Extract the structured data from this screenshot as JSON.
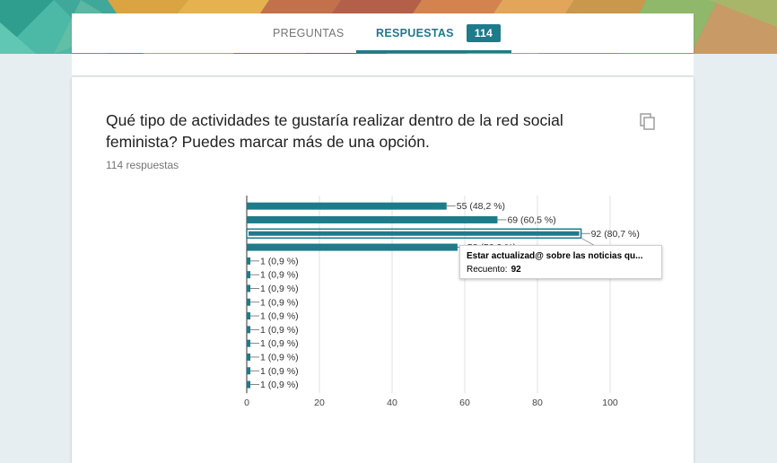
{
  "tabs": {
    "preguntas": "PREGUNTAS",
    "respuestas": "RESPUESTAS",
    "respuestas_count": "114"
  },
  "question": {
    "title": "Qué tipo de actividades te gustaría realizar dentro de la red social feminista? Puedes marcar más de una opción.",
    "responses": "114 respuestas"
  },
  "icons": {
    "copy": "copy-icon"
  },
  "colors": {
    "accent": "#1e7b8a",
    "bar": "#1e7b8a"
  },
  "chart_data": {
    "type": "bar",
    "orientation": "horizontal",
    "values": [
      55,
      69,
      92,
      58,
      1,
      1,
      1,
      1,
      1,
      1,
      1,
      1,
      1,
      1
    ],
    "data_labels": [
      "55 (48,2 %)",
      "69 (60,5 %)",
      "92 (80,7 %)",
      "58 (50,9 %)",
      "1 (0,9 %)",
      "1 (0,9 %)",
      "1 (0,9 %)",
      "1 (0,9 %)",
      "1 (0,9 %)",
      "1 (0,9 %)",
      "1 (0,9 %)",
      "1 (0,9 %)",
      "1 (0,9 %)",
      "1 (0,9 %)"
    ],
    "x_ticks": [
      0,
      20,
      40,
      60,
      80,
      100
    ],
    "xlim": [
      0,
      100
    ],
    "grid": true,
    "highlighted_index": 2
  },
  "tooltip": {
    "title": "Estar actualizad@ sobre las noticias qu...",
    "label": "Recuento:",
    "value": "92"
  }
}
